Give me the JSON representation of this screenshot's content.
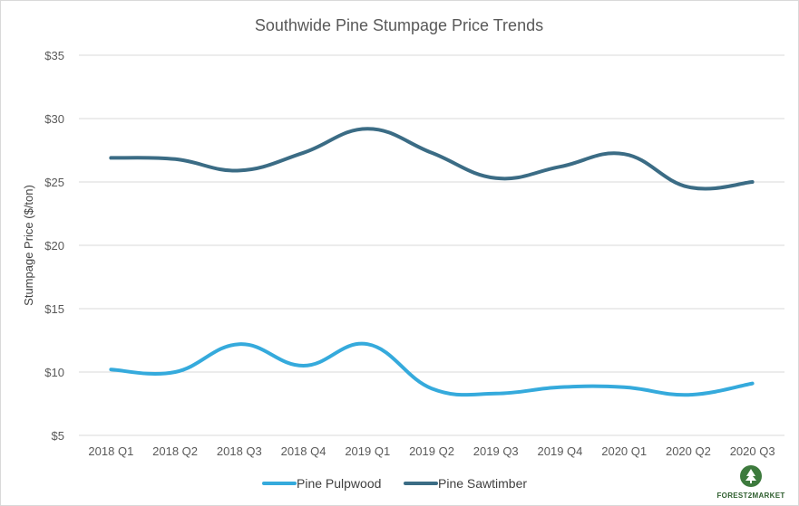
{
  "chart_data": {
    "type": "line",
    "title": "Southwide Pine Stumpage Price Trends",
    "xlabel": "",
    "ylabel": "Stumpage Price ($/ton)",
    "categories": [
      "2018 Q1",
      "2018 Q2",
      "2018 Q3",
      "2018 Q4",
      "2019 Q1",
      "2019 Q2",
      "2019 Q3",
      "2019 Q4",
      "2020 Q1",
      "2020 Q2",
      "2020 Q3"
    ],
    "ylim": [
      5,
      35
    ],
    "yticks": [
      5,
      10,
      15,
      20,
      25,
      30,
      35
    ],
    "ytick_labels": [
      "$5",
      "$10",
      "$15",
      "$20",
      "$25",
      "$30",
      "$35"
    ],
    "grid": true,
    "legend_position": "bottom",
    "series": [
      {
        "name": "Pine Pulpwood",
        "color": "#35aadc",
        "values": [
          10.2,
          10.0,
          12.2,
          10.5,
          12.2,
          8.7,
          8.3,
          8.8,
          8.8,
          8.2,
          9.1
        ]
      },
      {
        "name": "Pine Sawtimber",
        "color": "#3b6c85",
        "values": [
          26.9,
          26.8,
          25.9,
          27.3,
          29.2,
          27.3,
          25.3,
          26.2,
          27.2,
          24.6,
          25.0
        ]
      }
    ]
  },
  "logo": {
    "name": "forest-2-market-logo",
    "text": "FOREST2MARKET",
    "color": "#3d7a3d"
  }
}
